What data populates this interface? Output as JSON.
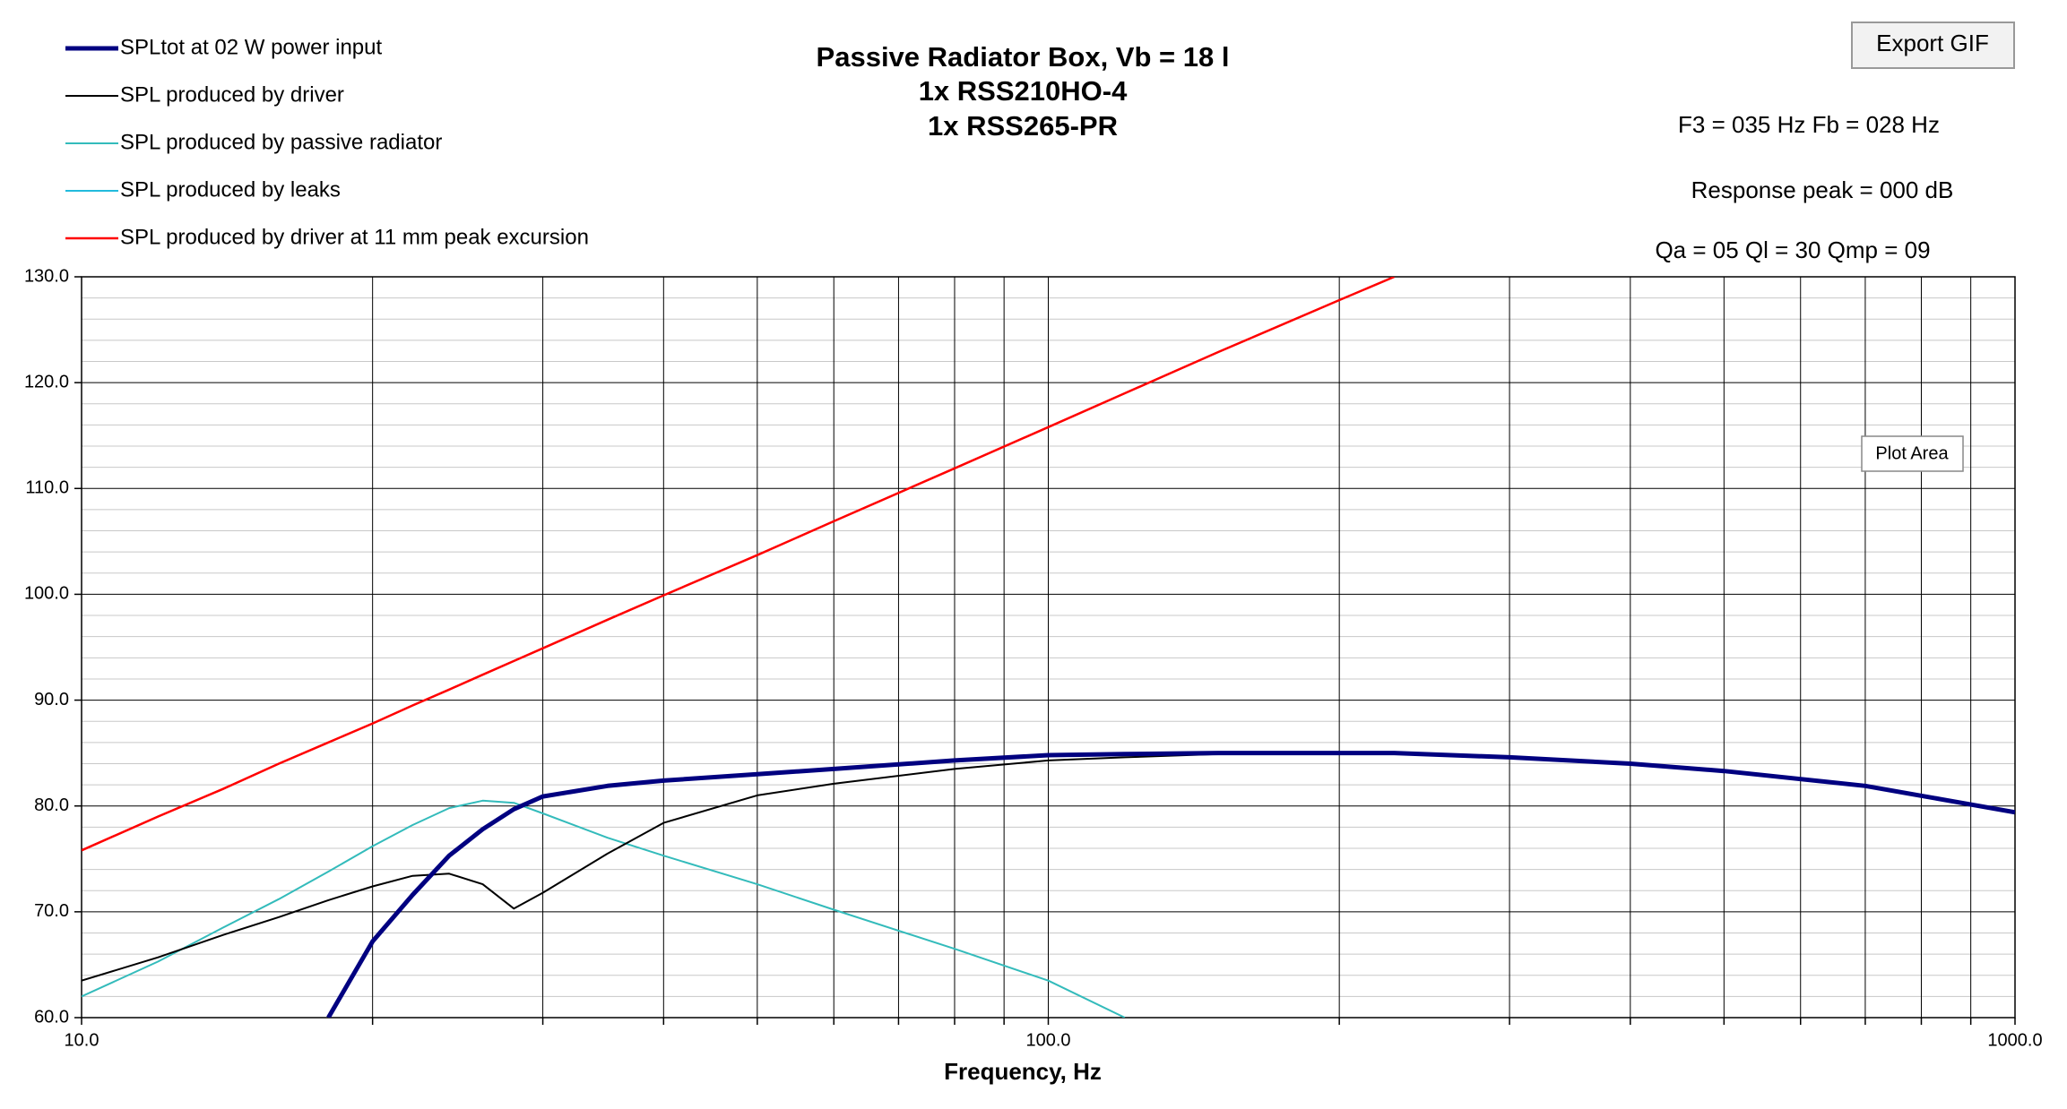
{
  "chart_data": {
    "type": "line",
    "title": [
      "Passive Radiator Box, Vb = 18 l",
      "1x RSS210HO-4",
      "1x RSS265-PR"
    ],
    "annotations": [
      "F3 = 035 Hz  Fb = 028 Hz",
      "Response peak = 000 dB",
      "Qa = 05  Ql = 30  Qmp = 09"
    ],
    "button": "Export GIF",
    "tooltip": "Plot Area",
    "x_label": "Frequency, Hz",
    "x_scale": "log",
    "xlim": [
      10,
      1000
    ],
    "ylim": [
      60,
      130
    ],
    "xticks": [
      {
        "value": 10,
        "label": "10.0"
      },
      {
        "value": 100,
        "label": "100.0"
      },
      {
        "value": 1000,
        "label": "1000.0"
      }
    ],
    "x_grid_lines": [
      20,
      30,
      40,
      50,
      60,
      70,
      80,
      90,
      200,
      300,
      400,
      500,
      600,
      700,
      800,
      900
    ],
    "yticks": [
      {
        "value": 60,
        "label": "60.0"
      },
      {
        "value": 70,
        "label": "70.0"
      },
      {
        "value": 80,
        "label": "80.0"
      },
      {
        "value": 90,
        "label": "90.0"
      },
      {
        "value": 100,
        "label": "100.0"
      },
      {
        "value": 110,
        "label": "110.0"
      },
      {
        "value": 120,
        "label": "120.0"
      },
      {
        "value": 130,
        "label": "130.0"
      }
    ],
    "grid": true,
    "legend": "top-left",
    "x": [
      10,
      12,
      14,
      16,
      18,
      20,
      22,
      24,
      26,
      28,
      30,
      35,
      40,
      50,
      60,
      80,
      100,
      120,
      150,
      200,
      228,
      300,
      400,
      500,
      700,
      1000
    ],
    "series": [
      {
        "name": "SPLtot at 02 W power input",
        "color": "#000080",
        "values": [
          null,
          null,
          null,
          null,
          60,
          67.2,
          71.6,
          75.3,
          77.8,
          79.7,
          80.9,
          81.9,
          82.4,
          83.0,
          83.5,
          84.3,
          84.8,
          84.9,
          85.0,
          85.0,
          85.0,
          84.6,
          84.0,
          83.3,
          81.9,
          79.4
        ]
      },
      {
        "name": "SPL produced by driver",
        "color": "#000000",
        "values": [
          63.5,
          65.7,
          67.8,
          69.5,
          71.1,
          72.4,
          73.4,
          73.6,
          72.6,
          70.3,
          71.8,
          75.5,
          78.4,
          81.0,
          82.1,
          83.5,
          84.3,
          84.6,
          84.9,
          85.0,
          85.0,
          84.6,
          84.0,
          83.3,
          81.9,
          79.4
        ]
      },
      {
        "name": "SPL produced by passive radiator",
        "color": "#33bbbb",
        "values": [
          62.0,
          65.3,
          68.5,
          71.2,
          73.8,
          76.2,
          78.2,
          79.8,
          80.5,
          80.3,
          79.3,
          77.0,
          75.3,
          72.6,
          70.2,
          66.5,
          63.5,
          60.0,
          null,
          null,
          null,
          null,
          null,
          null,
          null,
          null
        ]
      },
      {
        "name": "SPL produced by leaks",
        "color": "#22bbdd",
        "values": [
          null,
          null,
          null,
          null,
          null,
          null,
          null,
          null,
          null,
          null,
          null,
          null,
          null,
          null,
          null,
          null,
          null,
          null,
          null,
          null,
          null,
          null,
          null,
          null,
          null,
          null
        ]
      },
      {
        "name": "SPL produced by driver at 11 mm peak excursion",
        "color": "#ff0000",
        "values": [
          75.8,
          79.0,
          81.6,
          84.0,
          86.0,
          87.8,
          89.5,
          91.0,
          92.4,
          93.7,
          94.9,
          97.6,
          99.9,
          103.7,
          106.9,
          111.9,
          115.8,
          119.0,
          122.9,
          127.8,
          130,
          null,
          null,
          null,
          null,
          null
        ]
      }
    ]
  }
}
